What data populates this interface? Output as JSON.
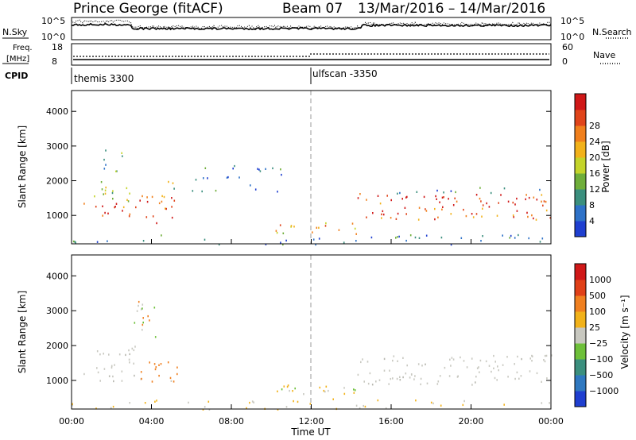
{
  "header": {
    "title": "Prince George (fitACF)",
    "beam": "Beam 07",
    "date_range": "13/Mar/2016 – 14/Mar/2016"
  },
  "top_panels": {
    "nsky_label": "N.Sky",
    "nsearch_label": "N.Search",
    "freq_label_1": "Freq.",
    "freq_label_2": "[MHz]",
    "nave_label": "Nave",
    "cpid_label": "CPID",
    "noise_ticks": [
      "10^5",
      "10^0"
    ],
    "freq_ticks": [
      "18",
      "8"
    ],
    "nave_ticks": [
      "60",
      "0"
    ],
    "cpid_segments": [
      {
        "start_hour": 0,
        "label": "themis 3300"
      },
      {
        "start_hour": 12,
        "label": "ulfscan -3350"
      }
    ]
  },
  "chart_data": [
    {
      "type": "heatmap",
      "name": "power",
      "ylabel": "Slant Range [km]",
      "xlabel": "",
      "xlim_hours": [
        0,
        24
      ],
      "ylim": [
        180,
        4600
      ],
      "yticks": [
        "1000",
        "2000",
        "3000",
        "4000"
      ],
      "colorbar": {
        "label": "Power [dB]",
        "tick_labels": [
          "4",
          "8",
          "12",
          "16",
          "20",
          "24",
          "28"
        ],
        "colors": [
          "#1f3fd0",
          "#2e72c8",
          "#3b8f7e",
          "#6fae3a",
          "#c4d42a",
          "#f2b21a",
          "#f07f1c",
          "#e0441a",
          "#d01818"
        ]
      },
      "regions": [
        {
          "t0": 0.6,
          "t1": 3.4,
          "r0": 950,
          "r1": 1400,
          "level": 0.8
        },
        {
          "t0": 1.0,
          "t1": 3.0,
          "r0": 1400,
          "r1": 2050,
          "level": 0.45
        },
        {
          "t0": 1.6,
          "t1": 2.6,
          "r0": 2200,
          "r1": 2900,
          "level": 0.35
        },
        {
          "t0": 3.3,
          "t1": 5.2,
          "r0": 800,
          "r1": 1650,
          "level": 0.85
        },
        {
          "t0": 4.6,
          "t1": 5.3,
          "r0": 1650,
          "r1": 2000,
          "level": 0.4
        },
        {
          "t0": 10.1,
          "t1": 14.4,
          "r0": 480,
          "r1": 820,
          "level": 0.65
        },
        {
          "t0": 14.3,
          "t1": 24.0,
          "r0": 900,
          "r1": 1650,
          "level": 0.82
        },
        {
          "t0": 14.4,
          "t1": 24.0,
          "r0": 1650,
          "r1": 1850,
          "level": 0.25
        },
        {
          "t0": 0.0,
          "t1": 24.0,
          "r0": 180,
          "r1": 460,
          "level": 0.18
        },
        {
          "t0": 6.0,
          "t1": 11.0,
          "r0": 1700,
          "r1": 2500,
          "level": 0.2
        }
      ]
    },
    {
      "type": "heatmap",
      "name": "velocity",
      "ylabel": "Slant Range [km]",
      "xlabel": "Time UT",
      "xlim_hours": [
        0,
        24
      ],
      "ylim": [
        180,
        4600
      ],
      "xticks": [
        "00:00",
        "04:00",
        "08:00",
        "12:00",
        "16:00",
        "20:00",
        "00:00"
      ],
      "yticks": [
        "1000",
        "2000",
        "3000",
        "4000"
      ],
      "colorbar": {
        "label": "Velocity [m s⁻¹]",
        "tick_labels": [
          "1000",
          "500",
          "100",
          "25",
          "−25",
          "−100",
          "−500",
          "−1000"
        ],
        "colors": [
          "#1f3fd0",
          "#2f78c0",
          "#3b8f7e",
          "#6ec03a",
          "#c8c8c0",
          "#f2b21a",
          "#f08020",
          "#e04018",
          "#d01818"
        ]
      },
      "regions": [
        {
          "t0": 0.6,
          "t1": 3.6,
          "r0": 1000,
          "r1": 1400,
          "kind": "gray"
        },
        {
          "t0": 1.2,
          "t1": 3.2,
          "r0": 1400,
          "r1": 2100,
          "kind": "gray"
        },
        {
          "t0": 3.4,
          "t1": 5.3,
          "r0": 900,
          "r1": 1650,
          "kind": "orange"
        },
        {
          "t0": 3.0,
          "t1": 4.2,
          "r0": 2200,
          "r1": 3300,
          "kind": "mixed"
        },
        {
          "t0": 10.2,
          "t1": 14.5,
          "r0": 480,
          "r1": 900,
          "kind": "yellow"
        },
        {
          "t0": 14.3,
          "t1": 24.0,
          "r0": 900,
          "r1": 1750,
          "kind": "gray"
        },
        {
          "t0": 0.0,
          "t1": 24.0,
          "r0": 180,
          "r1": 460,
          "kind": "sparse"
        }
      ]
    }
  ]
}
